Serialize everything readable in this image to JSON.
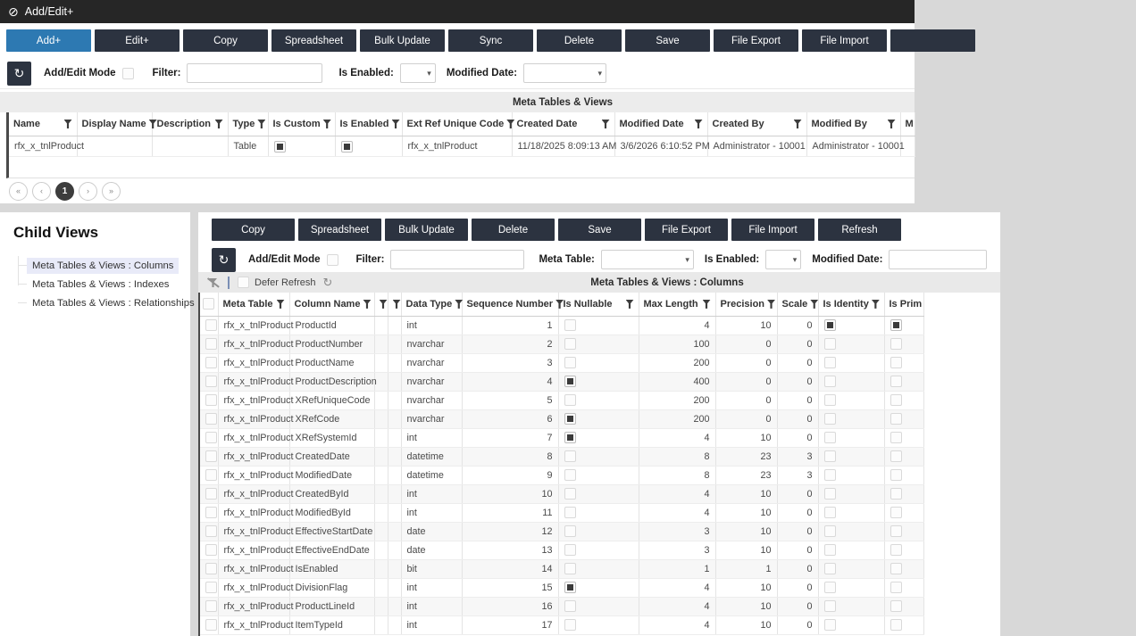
{
  "icons": {
    "title": "⊘",
    "sync": "↻",
    "refresh": "↻"
  },
  "title_bar": {
    "title": "Add/Edit+"
  },
  "main_toolbar": {
    "buttons": [
      {
        "label": "Add+",
        "primary": true
      },
      {
        "label": "Edit+"
      },
      {
        "label": "Copy"
      },
      {
        "label": "Spreadsheet"
      },
      {
        "label": "Bulk Update"
      },
      {
        "label": "Sync"
      },
      {
        "label": "Delete"
      },
      {
        "label": "Save"
      },
      {
        "label": "File Export"
      },
      {
        "label": "File Import"
      },
      {
        "label": ""
      }
    ]
  },
  "parent_filter_bar": {
    "add_edit_mode_label": "Add/Edit Mode",
    "filter_label": "Filter:",
    "filter_value": "",
    "is_enabled_label": "Is Enabled:",
    "is_enabled_value": "",
    "modified_date_label": "Modified Date:",
    "modified_date_value": ""
  },
  "parent_grid": {
    "section_title": "Meta Tables & Views",
    "columns": [
      {
        "label": "Name",
        "width": 76,
        "filter": true
      },
      {
        "label": "Display Name",
        "width": 84,
        "filter": true
      },
      {
        "label": "Description",
        "width": 85,
        "filter": true
      },
      {
        "label": "Type",
        "width": 45,
        "filter": true
      },
      {
        "label": "Is Custom",
        "width": 75,
        "filter": true,
        "type": "check"
      },
      {
        "label": "Is Enabled",
        "width": 75,
        "filter": true,
        "type": "check"
      },
      {
        "label": "Ext Ref Unique Code",
        "width": 123,
        "filter": true
      },
      {
        "label": "Created Date",
        "width": 115,
        "filter": true
      },
      {
        "label": "Modified Date",
        "width": 104,
        "filter": true
      },
      {
        "label": "Created By",
        "width": 111,
        "filter": true
      },
      {
        "label": "Modified By",
        "width": 105,
        "filter": true
      },
      {
        "label": "M",
        "width": 16,
        "filter": false
      }
    ],
    "rows": [
      [
        "rfx_x_tnlProduct",
        "",
        "",
        "Table",
        true,
        true,
        "rfx_x_tnlProduct",
        "11/18/2025 8:09:13 AM",
        "3/6/2026 6:10:52 PM",
        "Administrator - 10001",
        "Administrator - 10001",
        ""
      ]
    ]
  },
  "pagination": {
    "first": "«",
    "prev": "‹",
    "current": "1",
    "next": "›",
    "last": "»"
  },
  "child_views": {
    "title": "Child Views",
    "items": [
      {
        "label": "Meta Tables & Views : Columns",
        "selected": true
      },
      {
        "label": "Meta Tables & Views : Indexes",
        "selected": false
      },
      {
        "label": "Meta Tables & Views : Relationships",
        "selected": false
      }
    ]
  },
  "child_toolbar": {
    "buttons": [
      {
        "label": "Copy"
      },
      {
        "label": "Spreadsheet"
      },
      {
        "label": "Bulk Update"
      },
      {
        "label": "Delete"
      },
      {
        "label": "Save"
      },
      {
        "label": "File Export"
      },
      {
        "label": "File Import"
      },
      {
        "label": "Refresh"
      }
    ]
  },
  "child_filter_bar": {
    "add_edit_mode_label": "Add/Edit Mode",
    "filter_label": "Filter:",
    "filter_value": "",
    "meta_table_label": "Meta Table:",
    "meta_table_value": "",
    "is_enabled_label": "Is Enabled:",
    "is_enabled_value": "",
    "modified_date_label": "Modified Date:",
    "modified_date_value": ""
  },
  "defer_bar": {
    "defer_label": "Defer Refresh",
    "section_title": "Meta Tables & Views : Columns"
  },
  "child_grid": {
    "columns": [
      {
        "label": "",
        "width": 20,
        "type": "rowcheck"
      },
      {
        "label": "Meta Table",
        "width": 80,
        "filter": true
      },
      {
        "label": "Column Name",
        "width": 95,
        "filter": true
      },
      {
        "label": "",
        "width": 15,
        "filter": true
      },
      {
        "label": "",
        "width": 15,
        "filter": true
      },
      {
        "label": "Data Type",
        "width": 68,
        "filter": true
      },
      {
        "label": "Sequence Number",
        "width": 108,
        "filter": true,
        "align": "right"
      },
      {
        "label": "Is Nullable",
        "width": 90,
        "filter": true,
        "type": "check"
      },
      {
        "label": "Max Length",
        "width": 86,
        "filter": true,
        "align": "right"
      },
      {
        "label": "Precision",
        "width": 69,
        "filter": true,
        "align": "right"
      },
      {
        "label": "Scale",
        "width": 46,
        "filter": true,
        "align": "right"
      },
      {
        "label": "Is Identity",
        "width": 74,
        "filter": true,
        "type": "check"
      },
      {
        "label": "Is Prim",
        "width": 44,
        "filter": false,
        "type": "check"
      }
    ],
    "rows": [
      [
        false,
        "rfx_x_tnlProduct",
        "ProductId",
        "",
        "",
        "int",
        1,
        false,
        4,
        10,
        0,
        true,
        true
      ],
      [
        false,
        "rfx_x_tnlProduct",
        "ProductNumber",
        "",
        "",
        "nvarchar",
        2,
        false,
        100,
        0,
        0,
        false,
        false
      ],
      [
        false,
        "rfx_x_tnlProduct",
        "ProductName",
        "",
        "",
        "nvarchar",
        3,
        false,
        200,
        0,
        0,
        false,
        false
      ],
      [
        false,
        "rfx_x_tnlProduct",
        "ProductDescription",
        "",
        "",
        "nvarchar",
        4,
        true,
        400,
        0,
        0,
        false,
        false
      ],
      [
        false,
        "rfx_x_tnlProduct",
        "XRefUniqueCode",
        "",
        "",
        "nvarchar",
        5,
        false,
        200,
        0,
        0,
        false,
        false
      ],
      [
        false,
        "rfx_x_tnlProduct",
        "XRefCode",
        "",
        "",
        "nvarchar",
        6,
        true,
        200,
        0,
        0,
        false,
        false
      ],
      [
        false,
        "rfx_x_tnlProduct",
        "XRefSystemId",
        "",
        "",
        "int",
        7,
        true,
        4,
        10,
        0,
        false,
        false
      ],
      [
        false,
        "rfx_x_tnlProduct",
        "CreatedDate",
        "",
        "",
        "datetime",
        8,
        false,
        8,
        23,
        3,
        false,
        false
      ],
      [
        false,
        "rfx_x_tnlProduct",
        "ModifiedDate",
        "",
        "",
        "datetime",
        9,
        false,
        8,
        23,
        3,
        false,
        false
      ],
      [
        false,
        "rfx_x_tnlProduct",
        "CreatedById",
        "",
        "",
        "int",
        10,
        false,
        4,
        10,
        0,
        false,
        false
      ],
      [
        false,
        "rfx_x_tnlProduct",
        "ModifiedById",
        "",
        "",
        "int",
        11,
        false,
        4,
        10,
        0,
        false,
        false
      ],
      [
        false,
        "rfx_x_tnlProduct",
        "EffectiveStartDate",
        "",
        "",
        "date",
        12,
        false,
        3,
        10,
        0,
        false,
        false
      ],
      [
        false,
        "rfx_x_tnlProduct",
        "EffectiveEndDate",
        "",
        "",
        "date",
        13,
        false,
        3,
        10,
        0,
        false,
        false
      ],
      [
        false,
        "rfx_x_tnlProduct",
        "IsEnabled",
        "",
        "",
        "bit",
        14,
        false,
        1,
        1,
        0,
        false,
        false
      ],
      [
        false,
        "rfx_x_tnlProduct",
        "DivisionFlag",
        "",
        "",
        "int",
        15,
        true,
        4,
        10,
        0,
        false,
        false
      ],
      [
        false,
        "rfx_x_tnlProduct",
        "ProductLineId",
        "",
        "",
        "int",
        16,
        false,
        4,
        10,
        0,
        false,
        false
      ],
      [
        false,
        "rfx_x_tnlProduct",
        "ItemTypeId",
        "",
        "",
        "int",
        17,
        false,
        4,
        10,
        0,
        false,
        false
      ]
    ]
  }
}
